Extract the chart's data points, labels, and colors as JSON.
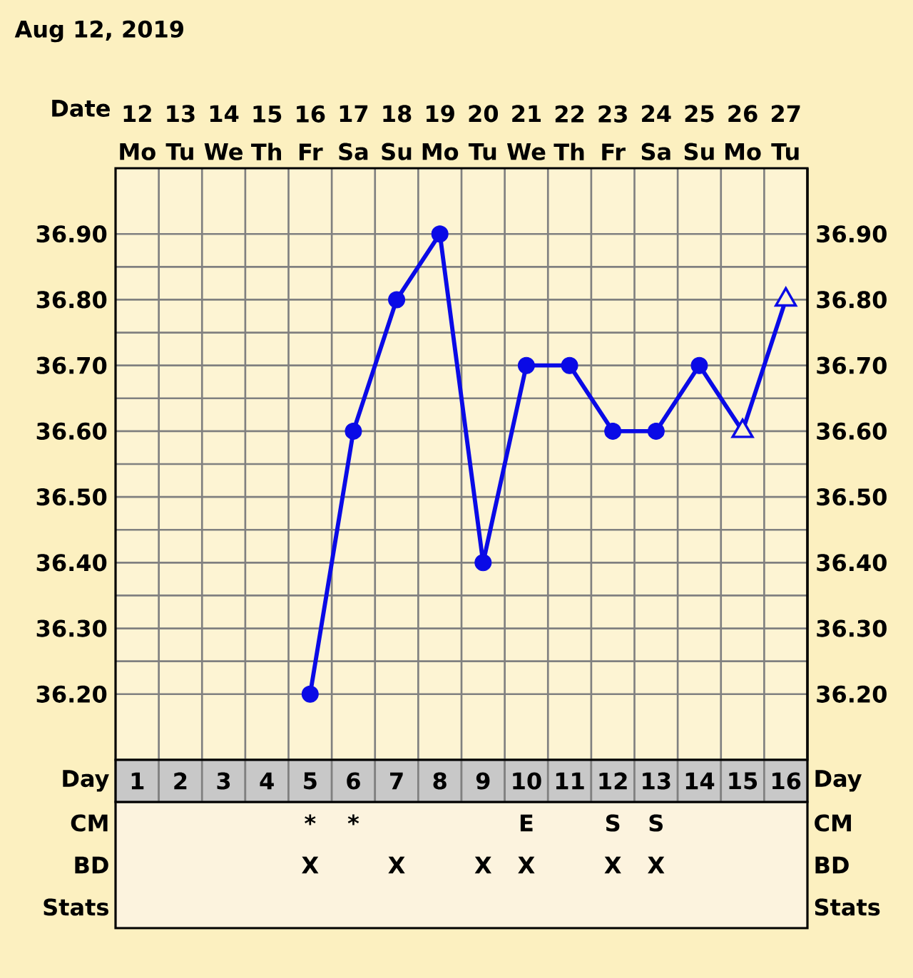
{
  "chart_data": [
    {
      "type": "line",
      "title": "Aug 12, 2019",
      "xlabel": "Date",
      "categories": [
        "12 Mo",
        "13 Tu",
        "14 We",
        "15 Th",
        "16 Fr",
        "17 Sa",
        "18 Su",
        "19 Mo",
        "20 Tu",
        "21 We",
        "22 Th",
        "23 Fr",
        "24 Sa",
        "25 Su",
        "26 Mo",
        "27 Tu"
      ],
      "series": [
        {
          "marker": "none",
          "color": "#0a0ae6",
          "values": [
            null,
            null,
            null,
            null,
            36.2,
            36.6,
            36.8,
            36.9,
            36.4,
            36.7,
            36.7,
            36.6,
            36.6,
            36.7,
            36.6,
            36.8
          ]
        },
        {
          "type": "scatter",
          "marker": "circle",
          "color": "#0a0ae6",
          "values": [
            null,
            null,
            null,
            null,
            36.2,
            36.6,
            36.8,
            36.9,
            36.4,
            36.7,
            36.7,
            36.6,
            36.6,
            36.7,
            null,
            null
          ]
        },
        {
          "type": "scatter",
          "marker": "triangle",
          "color": "#0a0ae6",
          "values": [
            null,
            null,
            null,
            null,
            null,
            null,
            null,
            null,
            null,
            null,
            null,
            null,
            null,
            null,
            36.6,
            36.8
          ]
        }
      ],
      "ylim": [
        36.1,
        37.0
      ],
      "yticks": [
        {
          "value": 36.2,
          "label": "36.20"
        },
        {
          "value": 36.3,
          "label": "36.30"
        },
        {
          "value": 36.4,
          "label": "36.40"
        },
        {
          "value": 36.5,
          "label": "36.50"
        },
        {
          "value": 36.6,
          "label": "36.60"
        },
        {
          "value": 36.7,
          "label": "36.70"
        },
        {
          "value": 36.8,
          "label": "36.80"
        },
        {
          "value": 36.9,
          "label": "36.90"
        }
      ],
      "y2lim": [
        36.1,
        37.0
      ],
      "y2ticks": [
        {
          "value": 36.2,
          "label": "36.20"
        },
        {
          "value": 36.3,
          "label": "36.30"
        },
        {
          "value": 36.4,
          "label": "36.40"
        },
        {
          "value": 36.5,
          "label": "36.50"
        },
        {
          "value": 36.6,
          "label": "36.60"
        },
        {
          "value": 36.7,
          "label": "36.70"
        },
        {
          "value": 36.8,
          "label": "36.80"
        },
        {
          "value": 36.9,
          "label": "36.90"
        }
      ],
      "grid": true
    },
    {
      "type": "heatmap",
      "xlabel": "Day",
      "categories": [
        "1",
        "2",
        "3",
        "4",
        "5",
        "6",
        "7",
        "8",
        "9",
        "10",
        "11",
        "12",
        "13",
        "14",
        "15",
        "16"
      ],
      "y_categories": [
        "CM",
        "BD",
        "Stats"
      ],
      "y2_categories": [
        "CM",
        "BD",
        "Stats"
      ],
      "cells": [
        [
          null,
          null,
          null,
          null,
          null,
          null,
          null,
          null,
          null,
          null,
          null,
          null,
          null,
          null,
          null,
          null
        ],
        [
          null,
          null,
          null,
          null,
          null,
          null,
          null,
          null,
          null,
          null,
          null,
          null,
          null,
          null,
          null,
          null
        ],
        [
          null,
          null,
          null,
          null,
          null,
          null,
          null,
          null,
          null,
          null,
          null,
          null,
          null,
          null,
          null,
          null
        ]
      ],
      "cell_labels": [
        [
          null,
          null,
          null,
          null,
          "*",
          "*",
          null,
          null,
          null,
          "E",
          null,
          "S",
          "S",
          null,
          null,
          null
        ],
        [
          null,
          null,
          null,
          null,
          "X",
          null,
          "X",
          null,
          "X",
          "X",
          null,
          "X",
          "X",
          null,
          null,
          null
        ],
        [
          null,
          null,
          null,
          null,
          null,
          null,
          null,
          null,
          null,
          null,
          null,
          null,
          null,
          null,
          null,
          null
        ]
      ]
    }
  ]
}
